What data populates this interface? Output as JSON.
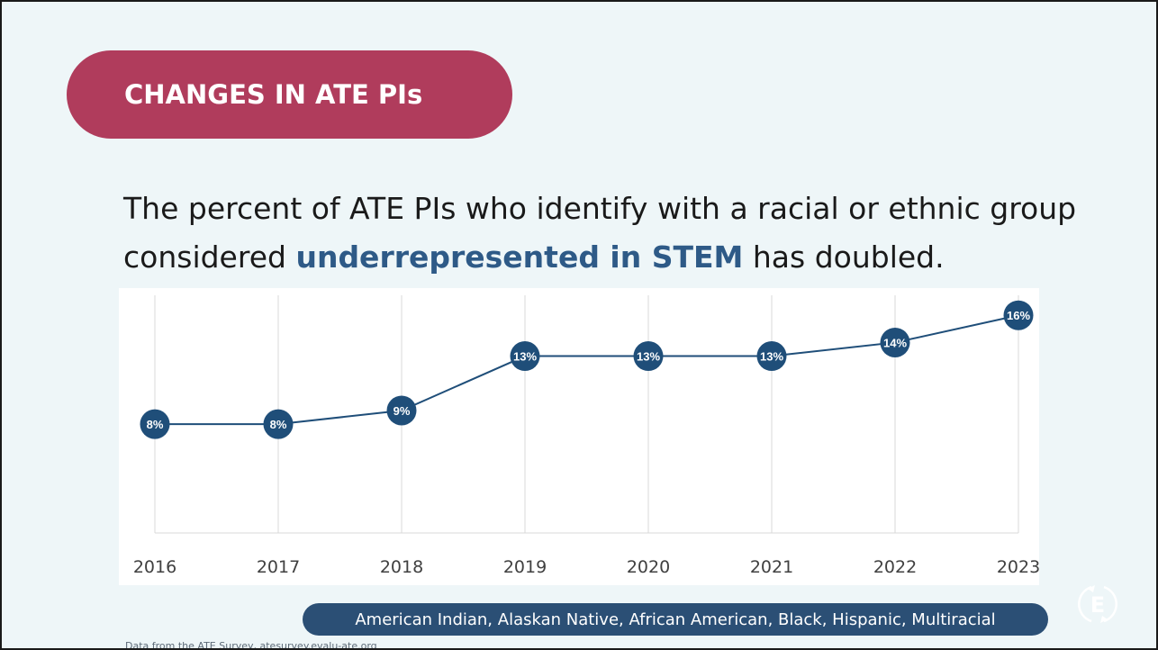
{
  "slide": {
    "title": "CHANGES IN ATE PIs",
    "headline_part1": "The percent of ATE PIs who identify with a racial or ethnic group considered ",
    "headline_highlight": "underrepresented in STEM",
    "headline_part2": " has doubled.",
    "footer_note": "American Indian, Alaskan Native, African American, Black, Hispanic, Multiracial",
    "source": "Data from the ATE Survey, atesurvey.evalu-ate.org",
    "logo_letter": "E"
  },
  "colors": {
    "title_pill": "#b03c5c",
    "accent": "#2e5a87",
    "marker": "#1f4e79",
    "footer_pill": "#2b4f75",
    "background": "#eef6f8"
  },
  "chart_data": {
    "type": "line",
    "title": "",
    "xlabel": "",
    "ylabel": "",
    "x": [
      "2016",
      "2017",
      "2018",
      "2019",
      "2020",
      "2021",
      "2022",
      "2023"
    ],
    "values": [
      8,
      8,
      9,
      13,
      13,
      13,
      14,
      16
    ],
    "data_labels": [
      "8%",
      "8%",
      "9%",
      "13%",
      "13%",
      "13%",
      "14%",
      "16%"
    ],
    "ylim": [
      0,
      18
    ],
    "grid": "vertical",
    "legend": "none"
  }
}
